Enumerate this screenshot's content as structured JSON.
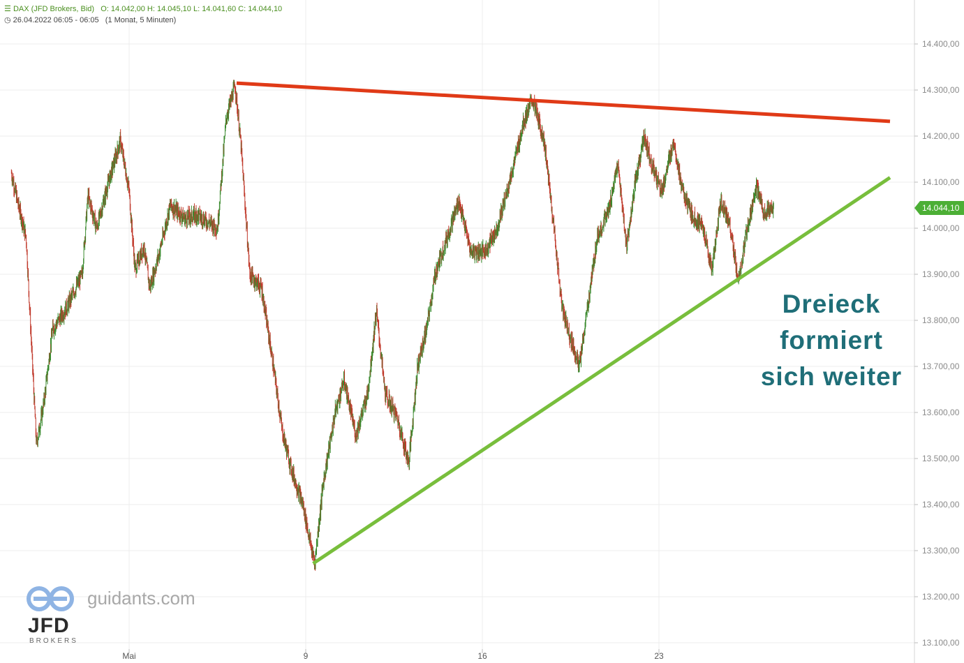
{
  "header": {
    "instrument": "DAX (JFD Brokers, Bid)",
    "ohlc": "O: 14.042,00  H: 14.045,10  L: 14.041,60  C: 14.044,10",
    "timeframe": "26.04.2022 06:05 - 06:05",
    "period": "(1 Monat, 5 Minuten)"
  },
  "annotation": [
    "Dreieck",
    "formiert",
    "sich weiter"
  ],
  "branding": {
    "site": "guidants.com",
    "broker": "JFD",
    "broker_sub": "BROKERS"
  },
  "colors": {
    "up": "#3a8a2e",
    "down": "#c0392b",
    "resistance": "#e03a17",
    "support": "#78be3c",
    "price_tag": "#4caf35",
    "annotation": "#1f6e78"
  },
  "chart_data": {
    "type": "candlestick",
    "title": "DAX (JFD Brokers, Bid)",
    "xlabel": "",
    "ylabel": "",
    "ylim": [
      13070,
      14480
    ],
    "y_ticks": [
      13100,
      13200,
      13300,
      13400,
      13500,
      13600,
      13700,
      13800,
      13900,
      14000,
      14100,
      14200,
      14300,
      14400
    ],
    "y_tick_labels": [
      "13.100,00",
      "13.200,00",
      "13.300,00",
      "13.400,00",
      "13.500,00",
      "13.600,00",
      "13.700,00",
      "13.800,00",
      "13.900,00",
      "14.000,00",
      "14.100,00",
      "14.200,00",
      "14.300,00",
      "14.400,00"
    ],
    "x_ticks": [
      {
        "label": "Mai",
        "session": 4
      },
      {
        "label": "9",
        "session": 10
      },
      {
        "label": "16",
        "session": 16
      },
      {
        "label": "23",
        "session": 22
      }
    ],
    "session_count": 30,
    "current_price": "14.044,10",
    "price_path": [
      {
        "s": 0.0,
        "v": 14120
      },
      {
        "s": 0.2,
        "v": 14060
      },
      {
        "s": 0.5,
        "v": 13980
      },
      {
        "s": 0.85,
        "v": 13530
      },
      {
        "s": 1.1,
        "v": 13620
      },
      {
        "s": 1.4,
        "v": 13780
      },
      {
        "s": 1.9,
        "v": 13830
      },
      {
        "s": 2.4,
        "v": 13900
      },
      {
        "s": 2.6,
        "v": 14070
      },
      {
        "s": 2.9,
        "v": 14000
      },
      {
        "s": 3.3,
        "v": 14100
      },
      {
        "s": 3.7,
        "v": 14190
      },
      {
        "s": 4.0,
        "v": 14080
      },
      {
        "s": 4.2,
        "v": 13910
      },
      {
        "s": 4.5,
        "v": 13960
      },
      {
        "s": 4.7,
        "v": 13870
      },
      {
        "s": 5.0,
        "v": 13940
      },
      {
        "s": 5.4,
        "v": 14050
      },
      {
        "s": 5.9,
        "v": 14020
      },
      {
        "s": 6.3,
        "v": 14030
      },
      {
        "s": 7.0,
        "v": 14000
      },
      {
        "s": 7.3,
        "v": 14240
      },
      {
        "s": 7.6,
        "v": 14310
      },
      {
        "s": 7.8,
        "v": 14180
      },
      {
        "s": 8.1,
        "v": 13900
      },
      {
        "s": 8.5,
        "v": 13870
      },
      {
        "s": 8.9,
        "v": 13700
      },
      {
        "s": 9.2,
        "v": 13560
      },
      {
        "s": 9.5,
        "v": 13480
      },
      {
        "s": 9.9,
        "v": 13400
      },
      {
        "s": 10.3,
        "v": 13270
      },
      {
        "s": 10.6,
        "v": 13450
      },
      {
        "s": 11.0,
        "v": 13600
      },
      {
        "s": 11.3,
        "v": 13670
      },
      {
        "s": 11.7,
        "v": 13550
      },
      {
        "s": 12.1,
        "v": 13640
      },
      {
        "s": 12.4,
        "v": 13820
      },
      {
        "s": 12.7,
        "v": 13640
      },
      {
        "s": 13.1,
        "v": 13590
      },
      {
        "s": 13.5,
        "v": 13490
      },
      {
        "s": 13.8,
        "v": 13700
      },
      {
        "s": 14.1,
        "v": 13780
      },
      {
        "s": 14.4,
        "v": 13900
      },
      {
        "s": 14.7,
        "v": 13960
      },
      {
        "s": 15.2,
        "v": 14060
      },
      {
        "s": 15.6,
        "v": 13950
      },
      {
        "s": 16.1,
        "v": 13950
      },
      {
        "s": 16.5,
        "v": 14000
      },
      {
        "s": 17.0,
        "v": 14120
      },
      {
        "s": 17.4,
        "v": 14230
      },
      {
        "s": 17.7,
        "v": 14280
      },
      {
        "s": 18.1,
        "v": 14190
      },
      {
        "s": 18.4,
        "v": 14020
      },
      {
        "s": 18.7,
        "v": 13830
      },
      {
        "s": 19.0,
        "v": 13760
      },
      {
        "s": 19.3,
        "v": 13700
      },
      {
        "s": 19.6,
        "v": 13840
      },
      {
        "s": 19.9,
        "v": 13980
      },
      {
        "s": 20.3,
        "v": 14040
      },
      {
        "s": 20.6,
        "v": 14140
      },
      {
        "s": 20.9,
        "v": 13960
      },
      {
        "s": 21.2,
        "v": 14100
      },
      {
        "s": 21.5,
        "v": 14200
      },
      {
        "s": 21.8,
        "v": 14130
      },
      {
        "s": 22.1,
        "v": 14080
      },
      {
        "s": 22.5,
        "v": 14190
      },
      {
        "s": 22.8,
        "v": 14080
      },
      {
        "s": 23.1,
        "v": 14030
      },
      {
        "s": 23.5,
        "v": 14000
      },
      {
        "s": 23.8,
        "v": 13910
      },
      {
        "s": 24.1,
        "v": 14060
      },
      {
        "s": 24.4,
        "v": 14010
      },
      {
        "s": 24.7,
        "v": 13880
      },
      {
        "s": 25.0,
        "v": 14000
      },
      {
        "s": 25.3,
        "v": 14090
      },
      {
        "s": 25.6,
        "v": 14030
      },
      {
        "s": 25.9,
        "v": 14044
      }
    ],
    "trendlines": [
      {
        "name": "resistance",
        "start": {
          "s": 7.65,
          "v": 14315
        },
        "end": {
          "s": 29.85,
          "v": 14232
        }
      },
      {
        "name": "support",
        "start": {
          "s": 10.25,
          "v": 13272
        },
        "end": {
          "s": 29.85,
          "v": 14110
        }
      }
    ],
    "grid": true,
    "legend": "none"
  }
}
